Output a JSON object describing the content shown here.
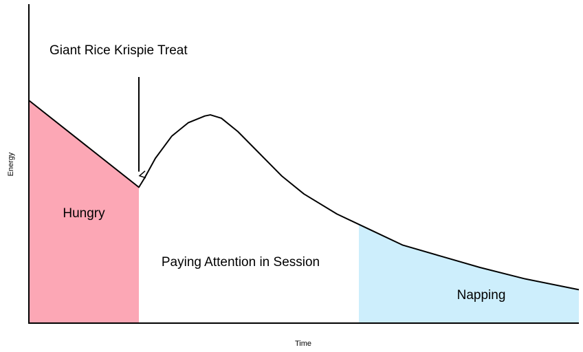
{
  "chart_data": {
    "type": "area",
    "title": "",
    "xlabel": "Time",
    "ylabel": "Energy",
    "xlim": [
      0,
      100
    ],
    "ylim": [
      0,
      100
    ],
    "grid": false,
    "annotation": {
      "text": "Giant Rice Krispie Treat",
      "x": 20,
      "arrow_to_y": 68
    },
    "curve": {
      "x": [
        0,
        20,
        21,
        23,
        26,
        29,
        32,
        33,
        35,
        38,
        42,
        46,
        50,
        56,
        62,
        68,
        75,
        82,
        90,
        100
      ],
      "y": [
        100,
        61,
        65,
        74,
        84,
        90,
        93,
        93.5,
        92,
        86,
        76,
        66,
        58,
        49,
        42,
        35,
        30,
        25,
        20,
        15
      ]
    },
    "regions": [
      {
        "label": "Hungry",
        "x0": 0,
        "x1": 20,
        "color": "#fca7b5"
      },
      {
        "label": "Paying Attention in Session",
        "x0": 20,
        "x1": 60,
        "color": "#ffffff"
      },
      {
        "label": "Napping",
        "x0": 60,
        "x1": 100,
        "color": "#cdeefc"
      }
    ]
  }
}
